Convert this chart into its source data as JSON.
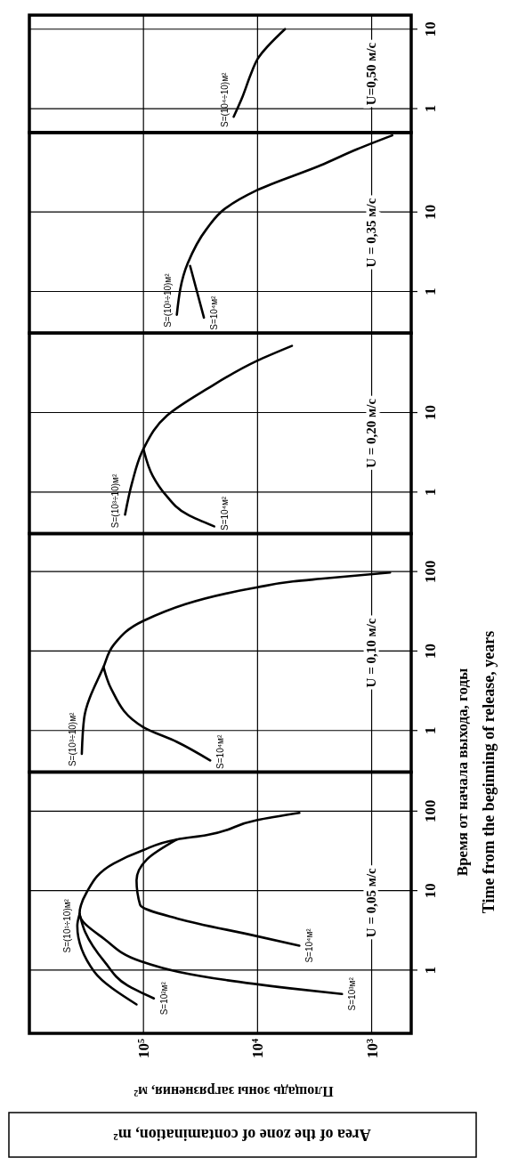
{
  "chart_data": [
    {
      "type": "line",
      "title": "U=0,50 м/с",
      "log": "xy",
      "grid": true,
      "line_style": "solid",
      "tick_labels": "y",
      "ylim": [
        0.5,
        15
      ],
      "yticks": [
        1,
        10
      ],
      "xlim": [
        1000000,
        450
      ],
      "xticks": [
        {
          "value": 1000,
          "label": null
        },
        {
          "value": 10000,
          "label": null
        },
        {
          "value": 100000,
          "label": null
        }
      ],
      "series": [
        {
          "name": "S=(10⁴÷10)м²",
          "color": "#000000",
          "x": [
            16200,
            13500,
            11500,
            10000,
            5750
          ],
          "values": [
            0.79,
            1.43,
            2.67,
            4.2,
            10
          ]
        }
      ]
    },
    {
      "type": "line",
      "title": "U = 0,35 м/с",
      "log": "xy",
      "grid": true,
      "line_style": "solid",
      "tick_labels": "y",
      "ylim": [
        0.3,
        100
      ],
      "yticks": [
        1,
        10
      ],
      "xlim": [
        1000000,
        450
      ],
      "xticks": [
        {
          "value": 1000,
          "label": null
        },
        {
          "value": 10000,
          "label": null
        },
        {
          "value": 100000,
          "label": null
        }
      ],
      "series": [
        {
          "name": "S=(10³÷10)м²",
          "color": "#000000",
          "x": [
            51000,
            41000,
            28000,
            19500,
            10200,
            2800,
            1350,
            660
          ],
          "values": [
            0.51,
            2.25,
            6.1,
            10.9,
            18.7,
            38.7,
            61.5,
            92
          ]
        },
        {
          "name": "S=10⁴м²",
          "color": "#000000",
          "x": [
            29500,
            39000
          ],
          "values": [
            0.47,
            2.1
          ]
        }
      ]
    },
    {
      "type": "line",
      "title": "U = 0,20 м/с",
      "log": "xy",
      "grid": true,
      "line_style": "solid",
      "tick_labels": "y",
      "ylim": [
        0.3,
        100
      ],
      "yticks": [
        1,
        10
      ],
      "xlim": [
        1000000,
        450
      ],
      "xticks": [
        {
          "value": 1000,
          "label": null
        },
        {
          "value": 10000,
          "label": null
        },
        {
          "value": 100000,
          "label": null
        }
      ],
      "series": [
        {
          "name": "S=(10³÷10)м²",
          "color": "#000000",
          "x": [
            145000,
            126000,
            100000,
            62000,
            27500,
            10200,
            5000
          ],
          "values": [
            0.52,
            1.3,
            3.5,
            9.2,
            20,
            44.5,
            69
          ]
        },
        {
          "name": "S=10⁴м²",
          "color": "#000000",
          "x": [
            24000,
            41000,
            65000,
            83000,
            100000
          ],
          "values": [
            0.37,
            0.52,
            0.95,
            1.6,
            3.5
          ]
        }
      ]
    },
    {
      "type": "line",
      "title": "U = 0,10 м/с",
      "ylabel": "Время от начала выхода, годы",
      "annotations": [
        "Time from the beginning of release, years"
      ],
      "log": "xy",
      "grid": true,
      "line_style": "solid",
      "tick_labels": "y",
      "ylim": [
        0.3,
        300
      ],
      "yticks": [
        1,
        10,
        100
      ],
      "xlim": [
        1000000,
        450
      ],
      "xticks": [
        {
          "value": 1000,
          "label": null
        },
        {
          "value": 10000,
          "label": null
        },
        {
          "value": 100000,
          "label": null
        }
      ],
      "series": [
        {
          "name": "S=(10³÷10)м²",
          "color": "#000000",
          "x": [
            347000,
            331000,
            224000,
            182000,
            100000,
            10200,
            4900,
            2800,
            690
          ],
          "values": [
            0.51,
            1.43,
            6.3,
            12,
            24,
            63,
            75,
            81,
            97
          ]
        },
        {
          "name": "S=10⁴м²",
          "color": "#000000",
          "x": [
            26000,
            51000,
            100000,
            191000,
            224000
          ],
          "values": [
            0.42,
            0.72,
            1.1,
            3.3,
            6.3
          ]
        }
      ]
    },
    {
      "type": "line",
      "title": "U = 0,05 м/с",
      "xlabel": "Площадь зоны загрязнения, м²",
      "annotations": [
        "Area of the zone of contamination, m²"
      ],
      "log": "xy",
      "grid": true,
      "line_style": "solid",
      "ylim": [
        0.16,
        310
      ],
      "yticks": [
        1,
        10,
        100
      ],
      "xlim": [
        1000000,
        450
      ],
      "xticks": [
        {
          "value": 1000,
          "label": "10³"
        },
        {
          "value": 10000,
          "label": "10⁴"
        },
        {
          "value": 100000,
          "label": "10⁵"
        }
      ],
      "series": [
        {
          "name": "S=(10¹÷10)м²",
          "color": "#000000",
          "x": [
            115000,
            269000,
            380000,
            363000
          ],
          "values": [
            0.37,
            0.95,
            3.6,
            5.1
          ]
        },
        {
          "name": "S=10²м²",
          "color": "#000000",
          "x": [
            81000,
            138000,
            219000,
            324000,
            363000
          ],
          "values": [
            0.44,
            0.64,
            1.27,
            3.0,
            5.1
          ]
        },
        {
          "name": "S=10³м²",
          "color": "#000000",
          "x": [
            1820,
            5200,
            19000,
            49000,
            107000,
            219000,
            363000,
            316000,
            182000,
            102000,
            51000,
            28000,
            10200,
            4300
          ],
          "values": [
            0.5,
            0.59,
            0.75,
            0.95,
            1.3,
            2.45,
            5.1,
            9.4,
            22,
            32,
            44,
            50,
            77,
            95
          ]
        },
        {
          "name": "S=10⁴м²",
          "color": "#000000",
          "x": [
            4300,
            10700,
            49000,
            107000,
            115000,
            93000,
            51000
          ],
          "values": [
            2.03,
            2.72,
            4.4,
            6.6,
            13.5,
            24.8,
            44
          ]
        }
      ]
    }
  ]
}
